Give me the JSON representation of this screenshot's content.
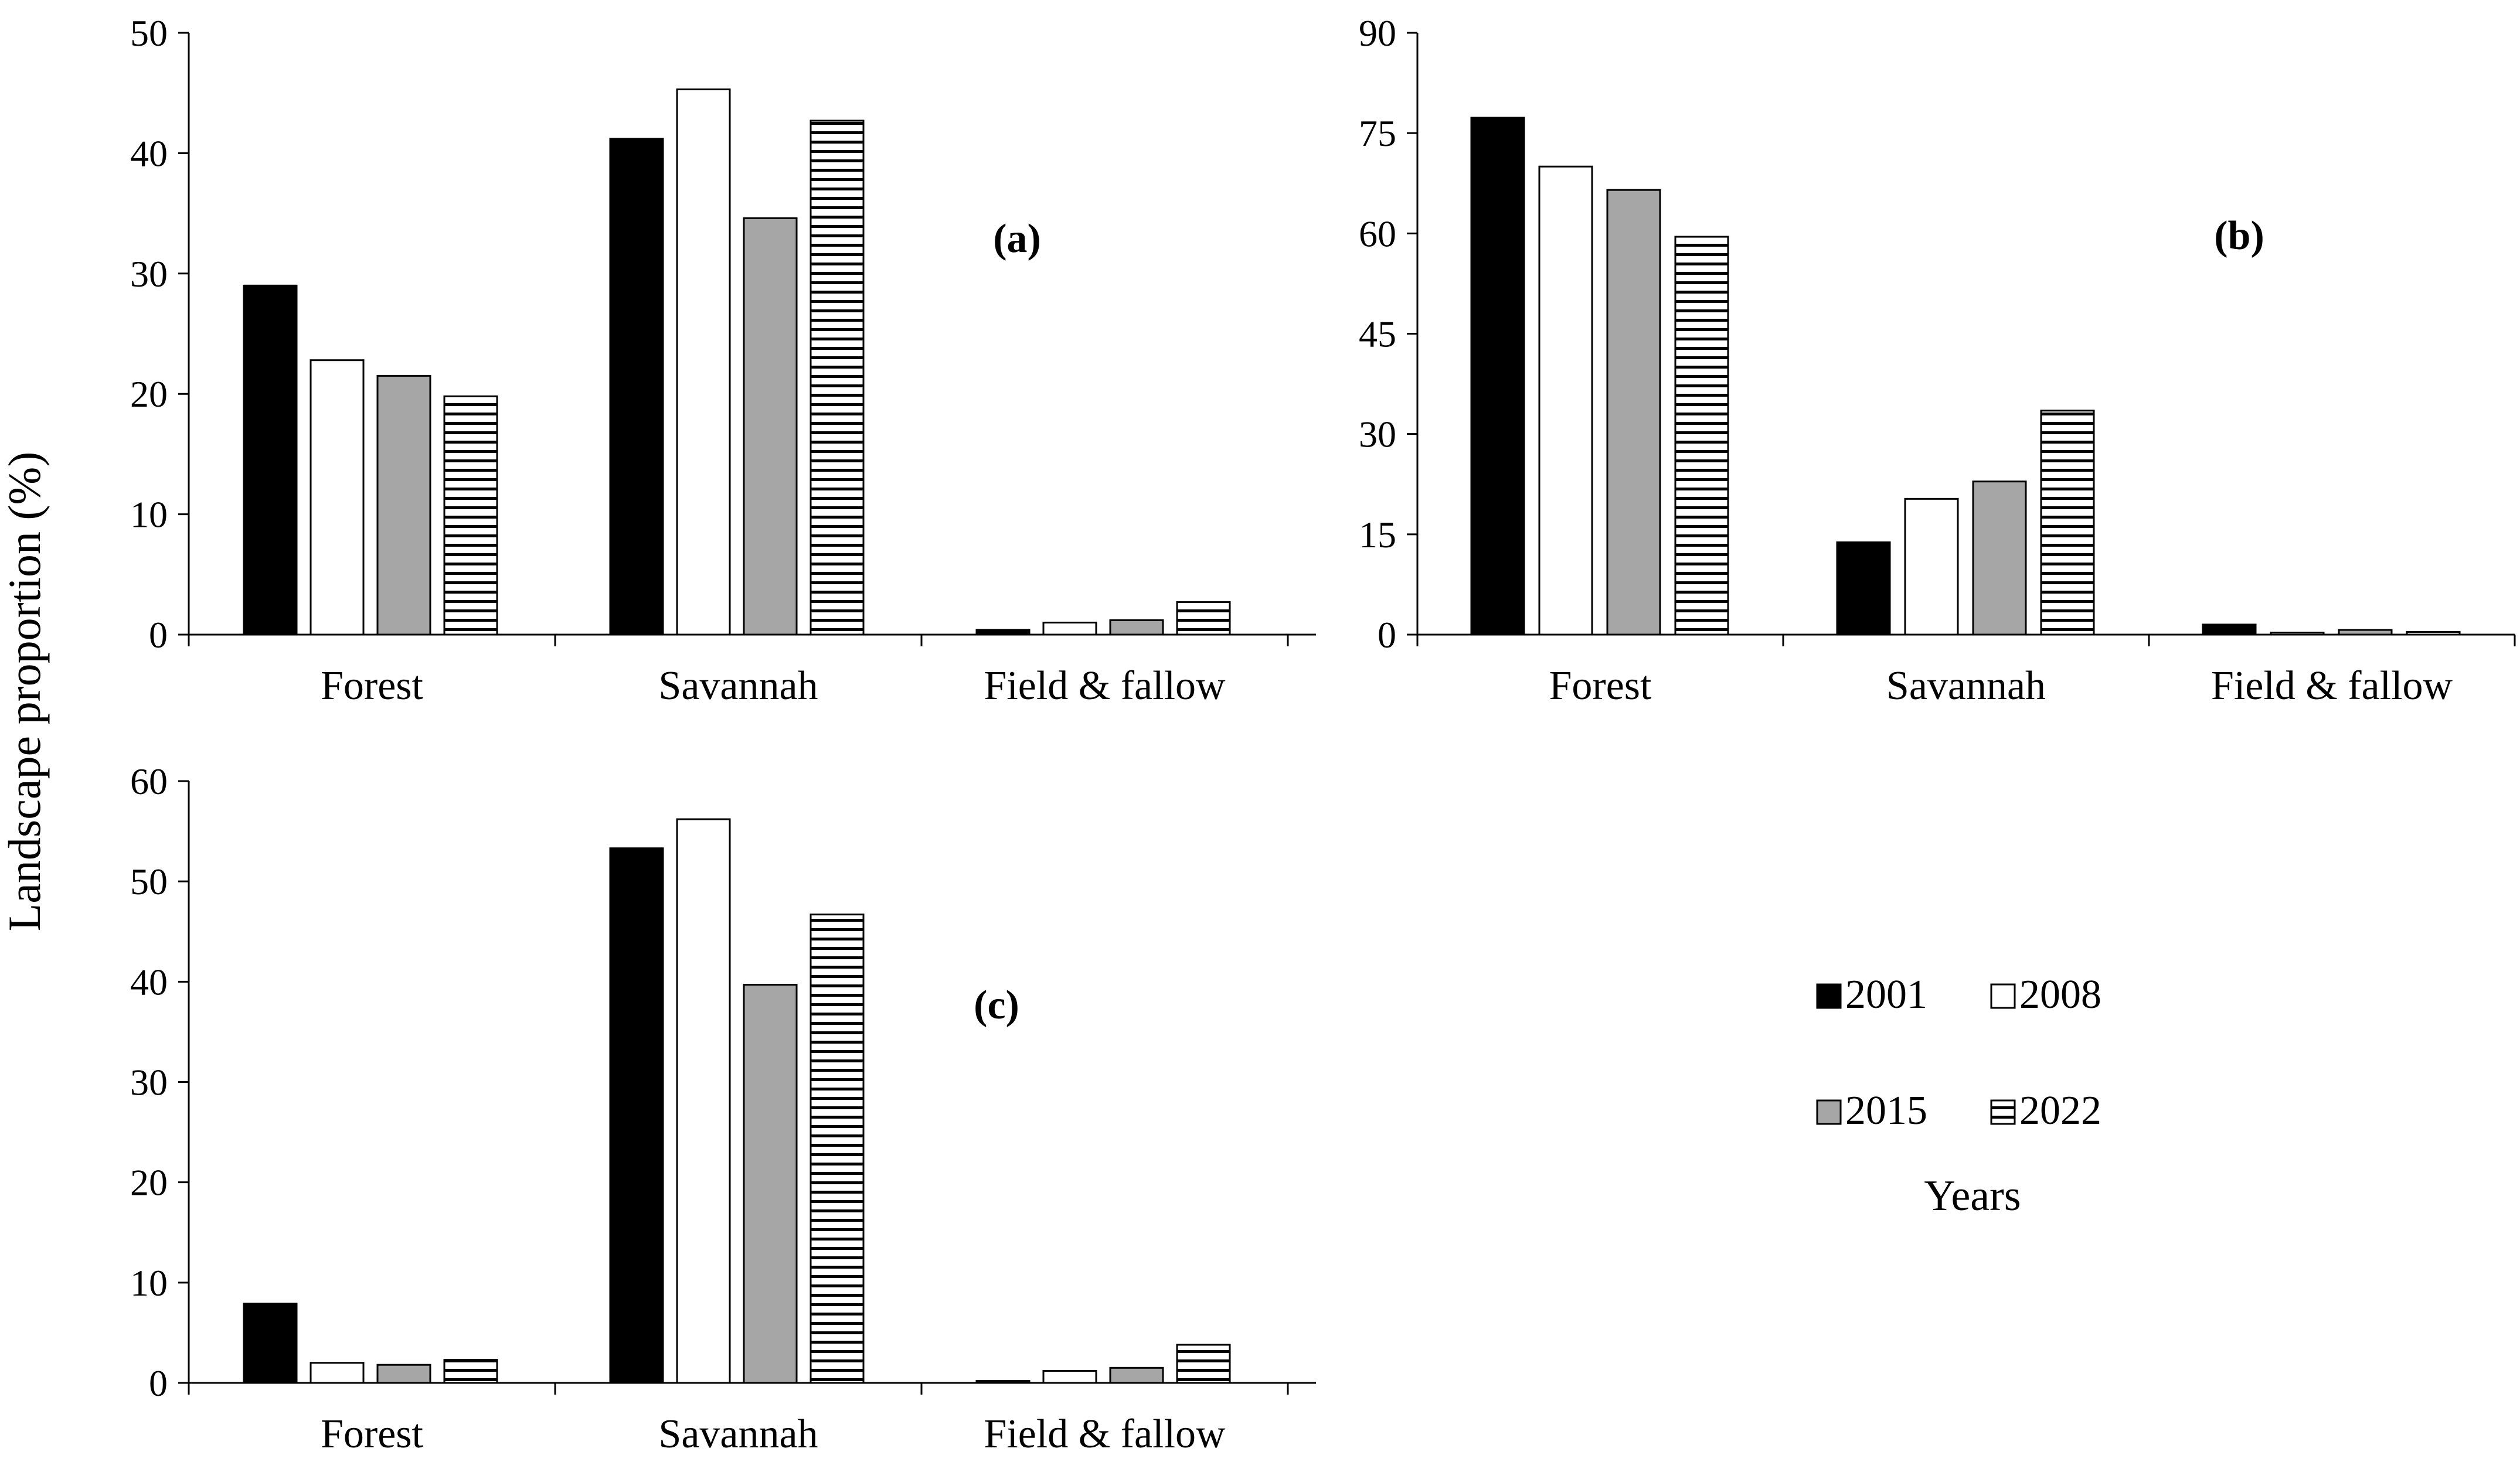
{
  "figure": {
    "ylabel": "Landscape proportion (%)"
  },
  "legend": {
    "title": "Years",
    "entries": [
      {
        "label": "2001",
        "fill": "black"
      },
      {
        "label": "2008",
        "fill": "white"
      },
      {
        "label": "2015",
        "fill": "gray"
      },
      {
        "label": "2022",
        "fill": "hatch"
      }
    ]
  },
  "colors": {
    "2001": "#000000",
    "2008": "#ffffff",
    "2015": "#a6a6a6",
    "2022_hatch": "#000000",
    "axis": "#000000"
  },
  "chart_data": [
    {
      "type": "bar",
      "panel": "a",
      "tag": "(a)",
      "categories": [
        "Forest",
        "Savannah",
        "Field & fallow"
      ],
      "ylim": [
        0,
        50
      ],
      "yticks": [
        0,
        10,
        20,
        30,
        40,
        50
      ],
      "xlabel": "",
      "ylabel": "Landscape proportion (%)",
      "series": [
        {
          "name": "2001",
          "values": [
            29.0,
            41.2,
            0.4
          ]
        },
        {
          "name": "2008",
          "values": [
            22.8,
            45.3,
            1.0
          ]
        },
        {
          "name": "2015",
          "values": [
            21.5,
            34.6,
            1.2
          ]
        },
        {
          "name": "2022",
          "values": [
            19.8,
            42.7,
            2.7
          ]
        }
      ]
    },
    {
      "type": "bar",
      "panel": "b",
      "tag": "(b)",
      "categories": [
        "Forest",
        "Savannah",
        "Field & fallow"
      ],
      "ylim": [
        0,
        90
      ],
      "yticks": [
        0,
        15,
        30,
        45,
        60,
        75,
        90
      ],
      "xlabel": "",
      "ylabel": "Landscape proportion (%)",
      "series": [
        {
          "name": "2001",
          "values": [
            77.3,
            13.8,
            1.5
          ]
        },
        {
          "name": "2008",
          "values": [
            70.0,
            20.3,
            0.3
          ]
        },
        {
          "name": "2015",
          "values": [
            66.5,
            22.9,
            0.7
          ]
        },
        {
          "name": "2022",
          "values": [
            59.5,
            33.5,
            0.4
          ]
        }
      ]
    },
    {
      "type": "bar",
      "panel": "c",
      "tag": "(c)",
      "categories": [
        "Forest",
        "Savannah",
        "Field & fallow"
      ],
      "ylim": [
        0,
        60
      ],
      "yticks": [
        0,
        10,
        20,
        30,
        40,
        50,
        60
      ],
      "xlabel": "",
      "ylabel": "Landscape proportion (%)",
      "series": [
        {
          "name": "2001",
          "values": [
            7.9,
            53.3,
            0.2
          ]
        },
        {
          "name": "2008",
          "values": [
            2.0,
            56.2,
            1.2
          ]
        },
        {
          "name": "2015",
          "values": [
            1.8,
            39.7,
            1.5
          ]
        },
        {
          "name": "2022",
          "values": [
            2.3,
            46.7,
            3.8
          ]
        }
      ]
    }
  ]
}
